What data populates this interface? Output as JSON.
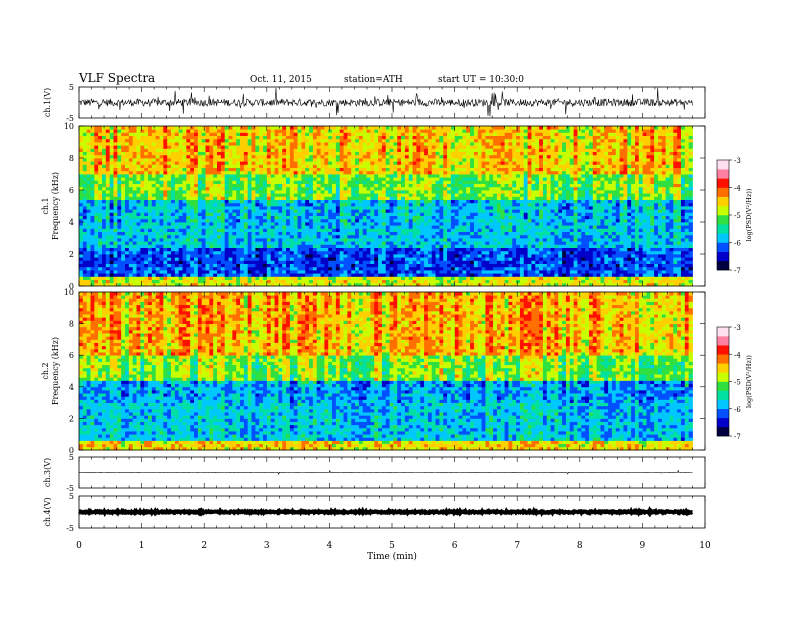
{
  "header": {
    "title": "VLF  Spectra",
    "date": "Oct. 11, 2015",
    "station": "station=ATH",
    "start": "start  UT =   10:30:0"
  },
  "chart_data": [
    {
      "type": "line",
      "id": "ch1-waveform",
      "ylabel": "ch.1(V)",
      "yticks": [
        "5",
        "-5"
      ],
      "ylim": [
        -5,
        5
      ],
      "description_level": 0.0,
      "noise_amplitude_V": 1.2
    },
    {
      "type": "heatmap",
      "id": "ch1-spectrogram",
      "ylabel": "Frequency  (kHz)",
      "channel": "ch.1",
      "yticks": [
        "0",
        "2",
        "4",
        "6",
        "8",
        "10"
      ],
      "ylim": [
        0,
        10
      ],
      "xlim": [
        0,
        9.8
      ],
      "colorbar": {
        "label": "log(PSD(V²/Hz))",
        "ticks": [
          "-3",
          "-4",
          "-5",
          "-6",
          "-7"
        ],
        "range": [
          -7,
          -3
        ]
      },
      "bands_kHz": [
        {
          "range": [
            0,
            0.6
          ],
          "level": -4.2
        },
        {
          "range": [
            0.6,
            2.5
          ],
          "level": -6.2
        },
        {
          "range": [
            2.5,
            5.5
          ],
          "level": -5.6
        },
        {
          "range": [
            5.5,
            7.0
          ],
          "level": -4.6
        },
        {
          "range": [
            7.0,
            10
          ],
          "level": -3.9
        }
      ]
    },
    {
      "type": "heatmap",
      "id": "ch2-spectrogram",
      "ylabel": "Frequency  (kHz)",
      "channel": "ch.2",
      "yticks": [
        "0",
        "2",
        "4",
        "6",
        "8",
        "10"
      ],
      "ylim": [
        0,
        10
      ],
      "xlim": [
        0,
        9.8
      ],
      "colorbar": {
        "label": "log(PSD(V²/Hz))",
        "ticks": [
          "-3",
          "-4",
          "-5",
          "-6",
          "-7"
        ],
        "range": [
          -7,
          -3
        ]
      },
      "bands_kHz": [
        {
          "range": [
            0,
            0.6
          ],
          "level": -4.0
        },
        {
          "range": [
            0.6,
            3.0
          ],
          "level": -5.6
        },
        {
          "range": [
            3.0,
            4.5
          ],
          "level": -5.8
        },
        {
          "range": [
            4.5,
            6.0
          ],
          "level": -4.6
        },
        {
          "range": [
            6.0,
            10
          ],
          "level": -3.8
        }
      ]
    },
    {
      "type": "line",
      "id": "ch3-waveform",
      "ylabel": "ch.3(V)",
      "yticks": [
        "5",
        "-5"
      ],
      "ylim": [
        -5,
        5
      ],
      "description_level": 0.0,
      "noise_amplitude_V": 0.05
    },
    {
      "type": "line",
      "id": "ch4-waveform",
      "ylabel": "ch.4(V)",
      "yticks": [
        "5",
        "-5"
      ],
      "ylim": [
        -5,
        5
      ],
      "description_level": 0.0,
      "noise_amplitude_V": 0.25
    }
  ],
  "x_axis": {
    "label": "Time  (min)",
    "ticks": [
      "0",
      "1",
      "2",
      "3",
      "4",
      "5",
      "6",
      "7",
      "8",
      "9",
      "10"
    ],
    "range": [
      0,
      10
    ],
    "data_end": 9.8
  },
  "colors": {
    "colormap": [
      "#000040",
      "#0000c8",
      "#0050ff",
      "#00c8ff",
      "#00e0a0",
      "#30e040",
      "#c8ff00",
      "#ffd000",
      "#ff7000",
      "#ff1000",
      "#ff80a0",
      "#ffe0f0"
    ]
  }
}
